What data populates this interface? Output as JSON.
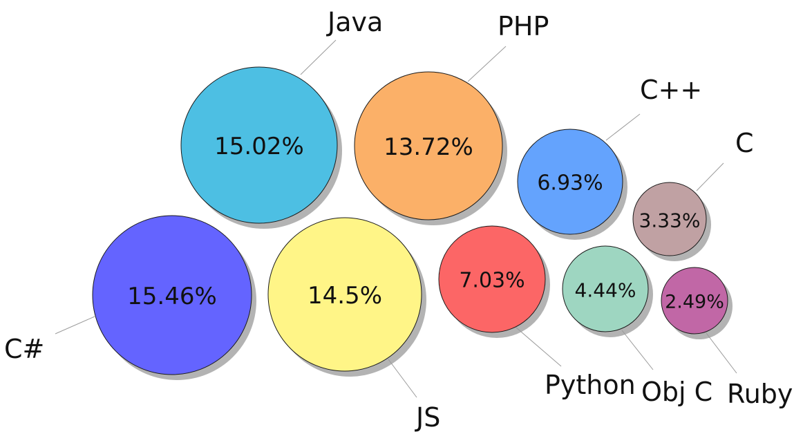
{
  "chart_data": {
    "type": "bubble",
    "title": "",
    "unit": "%",
    "series": [
      {
        "name": "C#",
        "value": 15.46,
        "value_label": "15.46%",
        "color": "#6464ff"
      },
      {
        "name": "Java",
        "value": 15.02,
        "value_label": "15.02%",
        "color": "#4dbfe3"
      },
      {
        "name": "JS",
        "value": 14.5,
        "value_label": "14.5%",
        "color": "#fff587"
      },
      {
        "name": "PHP",
        "value": 13.72,
        "value_label": "13.72%",
        "color": "#fbb068"
      },
      {
        "name": "Python",
        "value": 7.03,
        "value_label": "7.03%",
        "color": "#fc6666"
      },
      {
        "name": "C++",
        "value": 6.93,
        "value_label": "6.93%",
        "color": "#64a3fd"
      },
      {
        "name": "Obj C",
        "value": 4.44,
        "value_label": "4.44%",
        "color": "#9ed6c1"
      },
      {
        "name": "C",
        "value": 3.33,
        "value_label": "3.33%",
        "color": "#c0a1a3"
      },
      {
        "name": "Ruby",
        "value": 2.49,
        "value_label": "2.49%",
        "color": "#c167a6"
      }
    ]
  }
}
